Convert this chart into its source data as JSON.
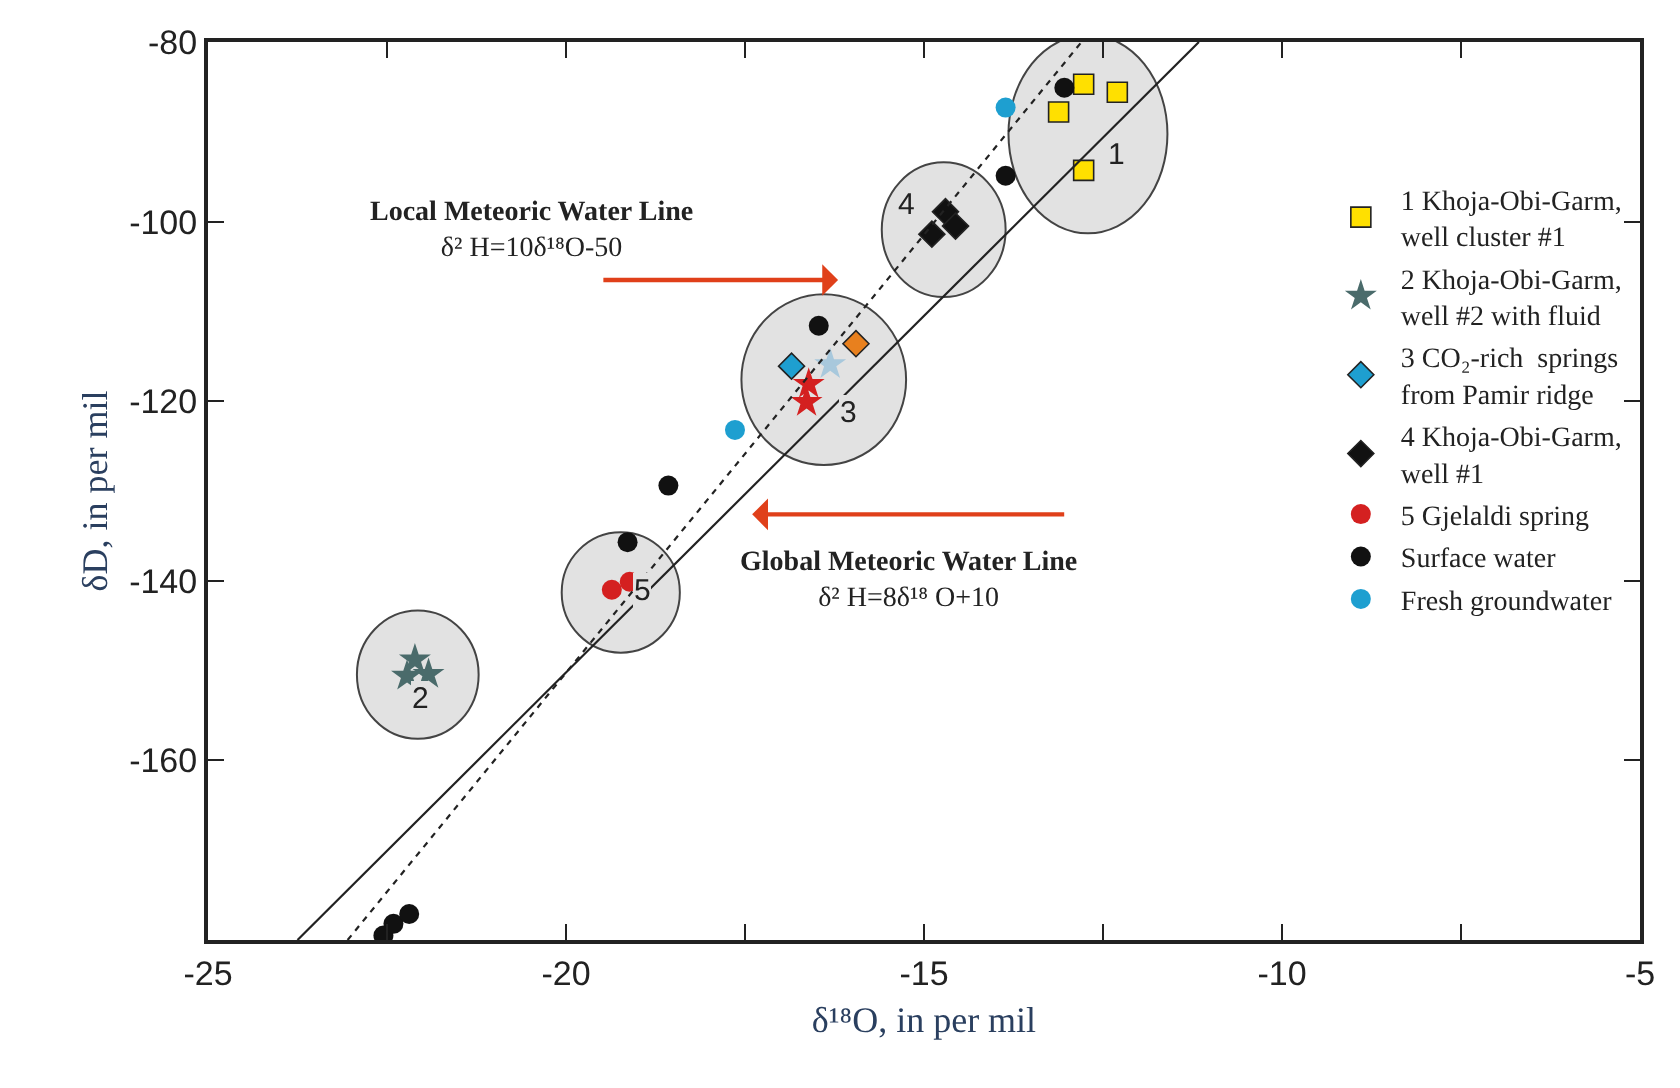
{
  "chart_data": {
    "type": "scatter",
    "xlabel": "δ¹⁸O, in per mil",
    "ylabel": "δD, in per mil",
    "xlim": [
      -25,
      -5
    ],
    "ylim": [
      -180,
      -80
    ],
    "xticks": [
      -25,
      {
        "value": -22.5,
        "label": null
      },
      -20,
      {
        "value": -17.5,
        "label": null
      },
      -15,
      {
        "value": -12.5,
        "label": null
      },
      -10,
      {
        "value": -7.5,
        "label": null
      },
      -5
    ],
    "yticks": [
      -80,
      -100,
      -120,
      -140,
      -160,
      {
        "value": -180,
        "label": null
      }
    ],
    "grid": false,
    "legend": "right",
    "series": [
      {
        "name": "1 Khoja-Obi-Garm,\nwell cluster #1",
        "color": "#ffe000",
        "marker": "square",
        "x": [
          -12.77,
          -12.3,
          -13.12,
          -12.77
        ],
        "values": [
          -84.7,
          -85.6,
          -87.8,
          -94.3
        ]
      },
      {
        "name": "2 Khoja-Obi-Garm,\nwell #2 with fluid",
        "color": "#4a6b6b",
        "marker": "star",
        "x": [
          -22.11,
          -22.22,
          -21.92
        ],
        "values": [
          -148.8,
          -150.6,
          -150.4
        ]
      },
      {
        "name": "3 CO₂-rich  springs\nfrom Pamir ridge",
        "colors": [
          "#1e9fd0",
          "#e8801e"
        ],
        "marker": "diamond",
        "x": [
          -16.85,
          -15.95
        ],
        "values": [
          -116.1,
          -113.6
        ]
      },
      {
        "colors": [
          "#a8c8dc",
          "#d42020",
          "#d42020"
        ],
        "marker": "star",
        "x": [
          -16.31,
          -16.61,
          -16.64
        ],
        "values": [
          -115.9,
          -118.1,
          -120.1
        ]
      },
      {
        "name": "4 Khoja-Obi-Garm,\nwell #1",
        "color": "#111111",
        "marker": "diamond",
        "x": [
          -14.89,
          -14.7,
          -14.56
        ],
        "values": [
          -101.4,
          -98.9,
          -100.5
        ]
      },
      {
        "name": "5 Gjelaldi spring",
        "color": "#d42020",
        "marker": "circle",
        "x": [
          -19.36,
          -19.11
        ],
        "values": [
          -141.0,
          -140.1
        ]
      },
      {
        "name": "Surface water",
        "color": "#111111",
        "marker": "circle",
        "x": [
          -13.04,
          -13.86,
          -16.47,
          -18.57,
          -19.14,
          -22.55,
          -22.41,
          -22.19
        ],
        "values": [
          -85.1,
          -94.9,
          -111.6,
          -129.4,
          -135.7,
          -179.5,
          -178.2,
          -177.1
        ]
      },
      {
        "name": "Fresh groundwater",
        "color": "#1e9fd0",
        "marker": "circle",
        "x": [
          -13.86,
          -17.64
        ],
        "values": [
          -87.3,
          -123.2
        ]
      },
      {
        "type": "line",
        "color": "#222222",
        "line_style": "dotted",
        "marker": "none",
        "x": [
          -23.05,
          -12.8
        ],
        "values": [
          -180,
          -80
        ]
      },
      {
        "type": "line",
        "color": "#222222",
        "line_style": "solid",
        "marker": "none",
        "x": [
          -23.75,
          -11.16
        ],
        "values": [
          -180,
          -80
        ]
      }
    ],
    "annotations": [
      "Local Meteoric Water Line\nδ² H=10δ¹⁸O-50",
      "Global Meteoric Water Line\nδ² H=8δ¹⁸ O+10",
      "1",
      "2",
      "3",
      "4",
      "5"
    ]
  }
}
